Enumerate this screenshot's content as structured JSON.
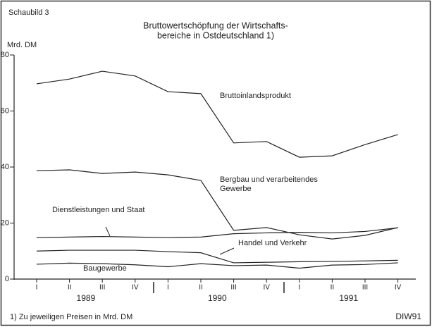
{
  "chart_data": {
    "type": "line",
    "label": "Schaubild 3",
    "title": [
      "Bruttowertschöpfung der Wirtschafts-",
      "bereiche in Ostdeutschland 1)"
    ],
    "y_label": "Mrd. DM",
    "categories": [
      "I",
      "II",
      "III",
      "IV",
      "I",
      "II",
      "III",
      "IV",
      "I",
      "II",
      "III",
      "IV"
    ],
    "years": [
      "1989",
      "1990",
      "1991"
    ],
    "ylim": [
      0,
      80
    ],
    "yticks": [
      0,
      20,
      40,
      60,
      80
    ],
    "grid": false,
    "series": [
      {
        "name": "Bruttoinlandsprodukt",
        "color": "#222222",
        "values": [
          69.7,
          71.4,
          74.2,
          72.5,
          66.9,
          66.2,
          48.6,
          49.1,
          43.5,
          44,
          48,
          51.6
        ]
      },
      {
        "name": "Bergbau und verarbeitendes Gewerbe",
        "color": "#222222",
        "values": [
          38.7,
          39,
          37.7,
          38.2,
          37.2,
          35.2,
          17.4,
          18.4,
          15.8,
          14.3,
          15.6,
          18.4
        ]
      },
      {
        "name": "Dienstleistungen und Staat",
        "color": "#222222",
        "values": [
          14.8,
          15,
          15.2,
          15,
          14.8,
          15,
          16.2,
          16.5,
          16.7,
          16.5,
          17,
          18.3
        ]
      },
      {
        "name": "Handel und Verkehr",
        "color": "#222222",
        "values": [
          10,
          10.3,
          10.3,
          10.3,
          9.8,
          9.4,
          5.8,
          6,
          6.2,
          6.3,
          6.5,
          6.7
        ]
      },
      {
        "name": "Baugewerbe",
        "color": "#222222",
        "values": [
          5.3,
          5.7,
          5.5,
          5.1,
          4.4,
          5.5,
          4.8,
          5,
          3.9,
          5,
          5.2,
          5.8
        ]
      }
    ],
    "footnote": "1) Zu jeweiligen Preisen in Mrd. DM",
    "source": "DIW91"
  }
}
